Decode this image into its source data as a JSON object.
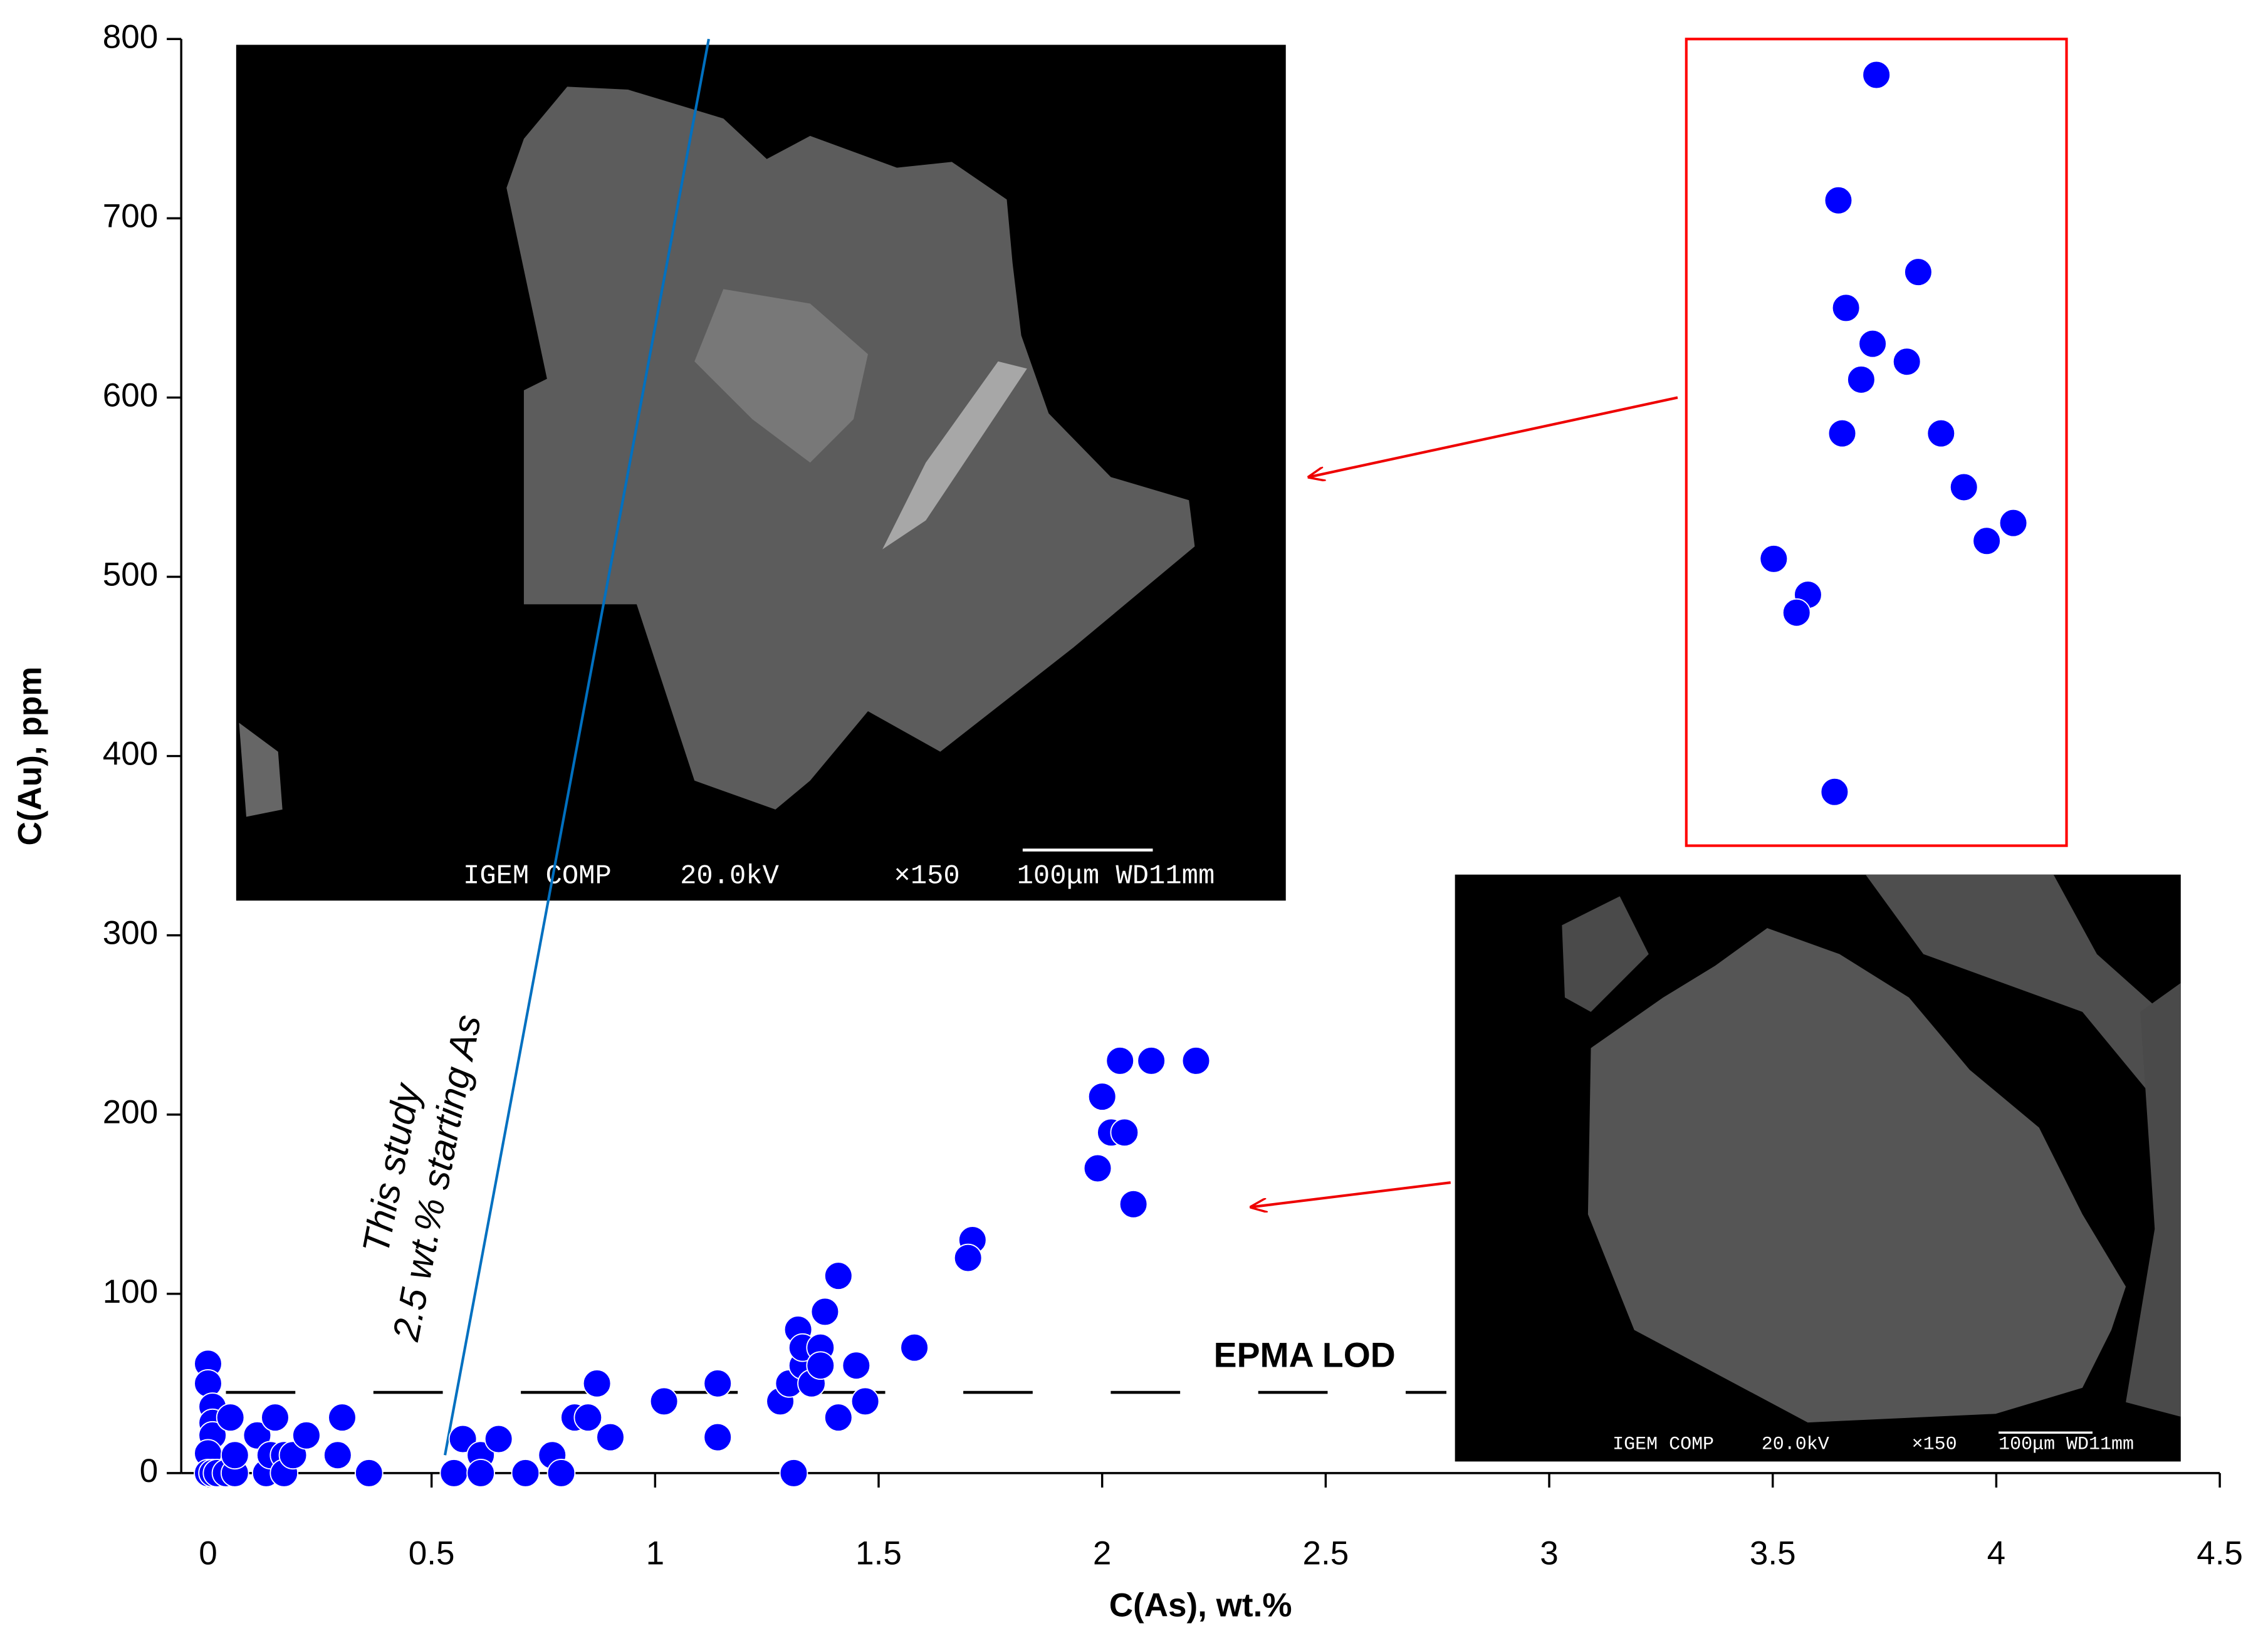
{
  "chart_data": [
    {
      "type": "scatter",
      "xlabel": "C(As), wt.%",
      "ylabel": "C(Au), ppm",
      "xlim": [
        -0.06,
        4.5
      ],
      "ylim": [
        0,
        800
      ],
      "xticks": [
        0,
        0.5,
        1,
        1.5,
        2,
        2.5,
        3,
        3.5,
        4,
        4.5
      ],
      "yticks": [
        0,
        100,
        200,
        300,
        400,
        500,
        600,
        700,
        800
      ],
      "color": "#0000ff",
      "x": [
        0,
        0,
        0.01,
        0.01,
        0.01,
        0,
        0,
        0.01,
        0.02,
        0.04,
        0.06,
        0.05,
        0.06,
        0.11,
        0.13,
        0.15,
        0.14,
        0.17,
        0.17,
        0.19,
        0.22,
        0.3,
        0.29,
        0.36,
        0.55,
        0.57,
        0.61,
        0.61,
        0.65,
        0.71,
        0.77,
        0.79,
        0.82,
        0.85,
        0.87,
        0.9,
        1.02,
        1.14,
        1.14,
        1.28,
        1.3,
        1.31,
        1.32,
        1.33,
        1.33,
        1.35,
        1.37,
        1.37,
        1.38,
        1.41,
        1.41,
        1.45,
        1.47,
        1.58,
        1.71,
        1.7,
        1.99,
        2.0,
        2.02,
        2.04,
        2.05,
        2.07,
        2.11,
        2.21
      ],
      "values": [
        61,
        50,
        37,
        28,
        21,
        11,
        0,
        0,
        0,
        0,
        0,
        31,
        10,
        21,
        0,
        31,
        10,
        10,
        0,
        10,
        21,
        31,
        10,
        0,
        0,
        19,
        10,
        0,
        19,
        0,
        10,
        0,
        31,
        31,
        50,
        20,
        40,
        50,
        20,
        40,
        50,
        0,
        80,
        60,
        70,
        50,
        70,
        60,
        90,
        31,
        110,
        60,
        40,
        70,
        130,
        120,
        170,
        210,
        190,
        230,
        190,
        150,
        230,
        230
      ],
      "trend_line": {
        "label": [
          "This study",
          "2.5 wt.% starting As"
        ],
        "x": [
          0.53,
          1.12
        ],
        "values": [
          10,
          800
        ],
        "color": "#0070c0"
      },
      "lod": {
        "label": "EPMA LOD",
        "value": 45,
        "x": [
          0.04,
          2.77
        ]
      },
      "images": [
        {
          "caption": [
            "IGEM COMP",
            "20.0kV",
            "×150",
            "100μm WD11mm"
          ]
        },
        {
          "caption": [
            "IGEM COMP",
            "20.0kV",
            "×150",
            "100μm WD11mm"
          ]
        }
      ]
    },
    {
      "type": "scatter",
      "xlim": [
        0,
        1
      ],
      "ylim": [
        350,
        800
      ],
      "color": "#0000ff",
      "frame_color": "#ff0000",
      "x": [
        0.5,
        0.4,
        0.42,
        0.49,
        0.61,
        0.58,
        0.46,
        0.41,
        0.67,
        0.73,
        0.23,
        0.32,
        0.29,
        0.86,
        0.79,
        0.39
      ],
      "values": [
        780,
        710,
        650,
        630,
        670,
        620,
        610,
        580,
        580,
        550,
        510,
        490,
        480,
        530,
        520,
        380
      ]
    }
  ]
}
